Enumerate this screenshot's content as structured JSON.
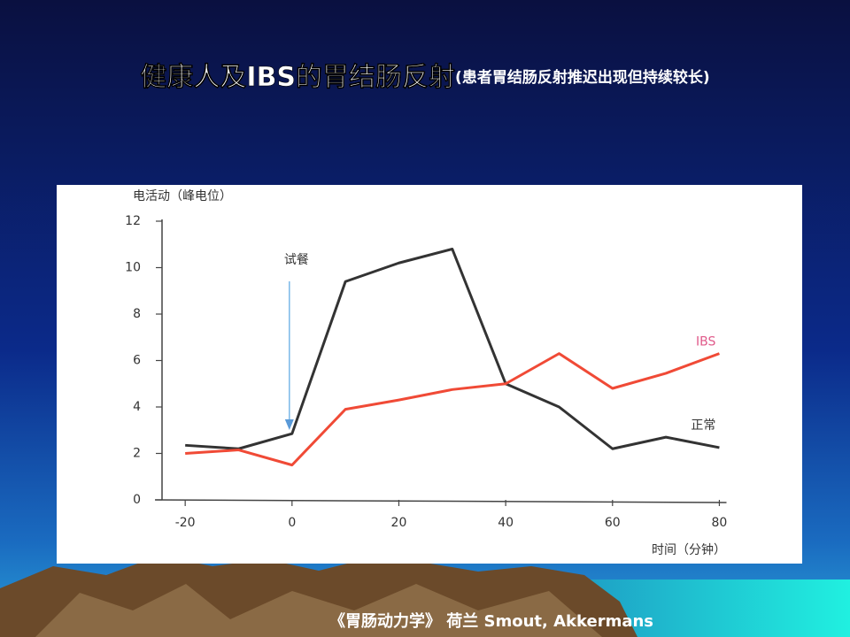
{
  "header": {
    "title": "健康人及IBS的胃结肠反射",
    "subtitle": "(患者胃结肠反射推迟出现但持续较长)"
  },
  "footer": "《胃肠动力学》 荷兰 Smout, Akkermans",
  "chart_data": {
    "type": "line",
    "y_label": "电活动（峰电位）",
    "x_label": "时间（分钟）",
    "annotation": "试餐",
    "x": [
      -20,
      -10,
      0,
      10,
      20,
      30,
      40,
      50,
      60,
      70,
      80
    ],
    "series": [
      {
        "name": "正常",
        "color": "#333333",
        "values": [
          2.35,
          2.2,
          2.85,
          9.4,
          10.2,
          10.8,
          5.0,
          4.0,
          2.2,
          2.7,
          2.25
        ]
      },
      {
        "name": "IBS",
        "color": "#f04a36",
        "values": [
          2.0,
          2.15,
          1.5,
          3.9,
          4.3,
          4.75,
          5.0,
          6.3,
          4.8,
          5.45,
          6.3
        ]
      }
    ],
    "xlim": [
      -25,
      82
    ],
    "xticks": [
      -20,
      0,
      20,
      40,
      60,
      80
    ],
    "ylim": [
      0,
      12
    ],
    "yticks": [
      0,
      2,
      4,
      6,
      8,
      10,
      12
    ],
    "grid": false
  }
}
